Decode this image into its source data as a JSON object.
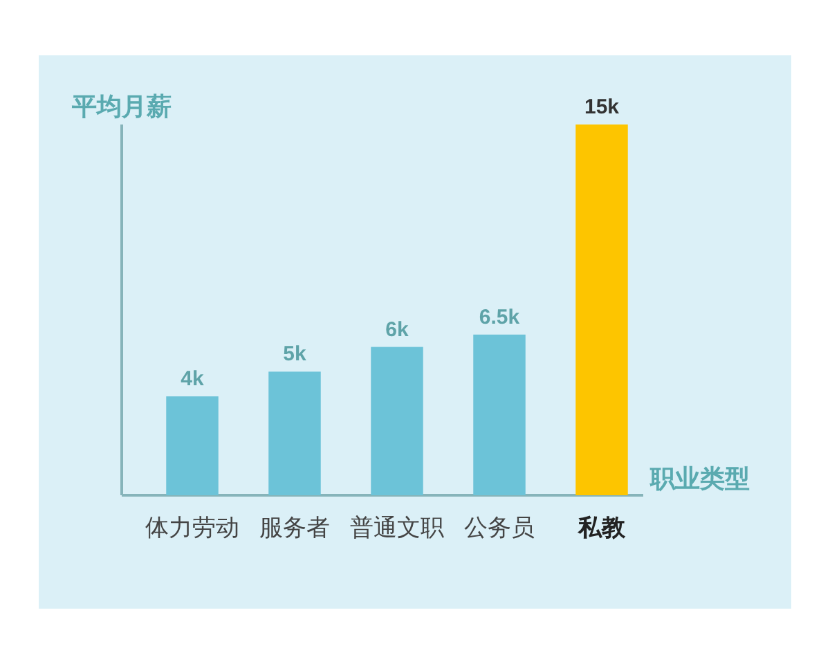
{
  "chart_data": {
    "type": "bar",
    "xlabel": "职业类型",
    "ylabel": "平均月薪",
    "categories": [
      "体力劳动",
      "服务者",
      "普通文职",
      "公务员",
      "私教"
    ],
    "values": [
      4,
      5,
      6,
      6.5,
      15
    ],
    "colors": [
      "#6cc3d8",
      "#6cc3d8",
      "#6cc3d8",
      "#6cc3d8",
      "#fdc500"
    ],
    "value_labels": [
      "4k",
      "5k",
      "6k",
      "6.5k",
      "15k"
    ],
    "ylim": [
      0,
      15
    ],
    "tick_labels": "x"
  }
}
